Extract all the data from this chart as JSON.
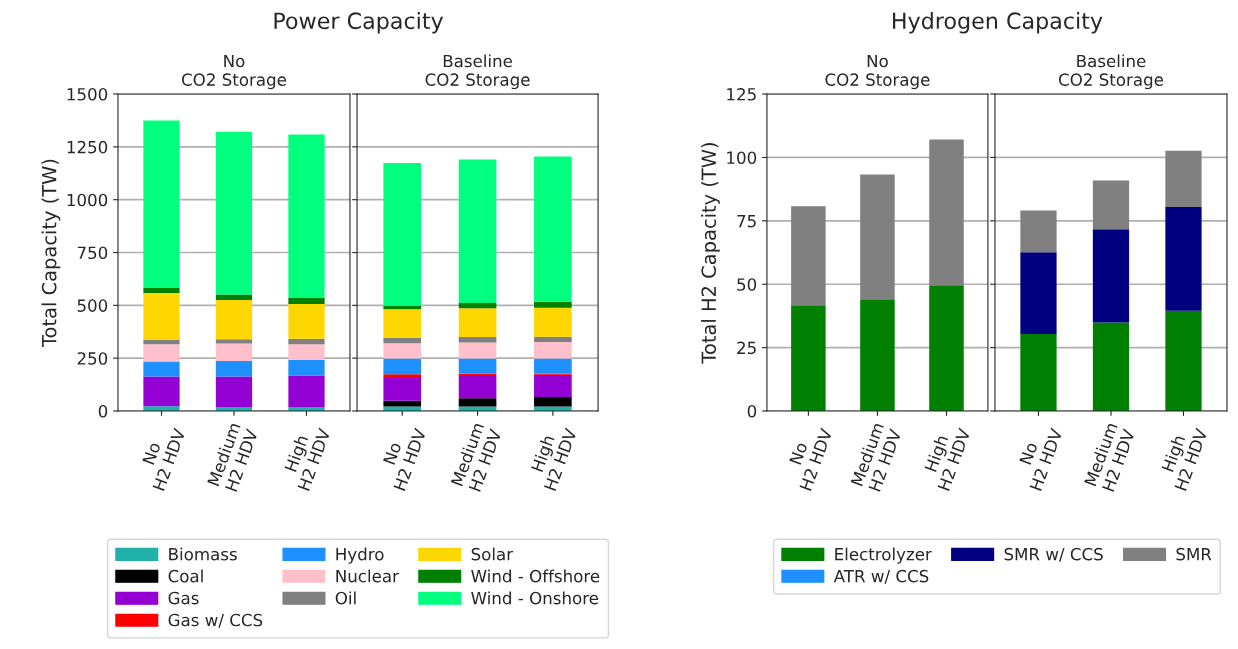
{
  "chart_data": [
    {
      "type": "bar",
      "stacked": true,
      "title": "Power Capacity",
      "subtitle": "No\nCO2 Storage",
      "ylabel": "Total Capacity (TW)",
      "categories": [
        "No\nH2 HDV",
        "Medium\nH2 HDV",
        "High\nH2 HDV"
      ],
      "ylim": [
        0,
        1500
      ],
      "yticks": [
        0,
        250,
        500,
        750,
        1000,
        1250,
        1500
      ],
      "grid": "y",
      "legend": "bottom",
      "series": [
        {
          "name": "Biomass",
          "color": "#20b2aa",
          "values": [
            22,
            19,
            19
          ]
        },
        {
          "name": "Coal",
          "color": "#000000",
          "values": [
            0,
            0,
            0
          ]
        },
        {
          "name": "Gas",
          "color": "#9400d3",
          "values": [
            141,
            144,
            149
          ]
        },
        {
          "name": "Gas w/ CCS",
          "color": "#ff0000",
          "values": [
            0,
            0,
            0
          ]
        },
        {
          "name": "Hydro",
          "color": "#1e90ff",
          "values": [
            71,
            74,
            74
          ]
        },
        {
          "name": "Nuclear",
          "color": "#ffc0cb",
          "values": [
            82,
            83,
            74
          ]
        },
        {
          "name": "Oil",
          "color": "#808080",
          "values": [
            21,
            20,
            26
          ]
        },
        {
          "name": "Solar",
          "color": "#ffd700",
          "values": [
            222,
            185,
            164
          ]
        },
        {
          "name": "Wind - Offshore",
          "color": "#008000",
          "values": [
            25,
            26,
            29
          ]
        },
        {
          "name": "Wind - Onshore",
          "color": "#00ff7f",
          "values": [
            791,
            770,
            774
          ]
        }
      ]
    },
    {
      "type": "bar",
      "stacked": true,
      "subtitle": "Baseline\nCO2 Storage",
      "categories": [
        "No\nH2 HDV",
        "Medium\nH2 HDV",
        "High\nH2 HDV"
      ],
      "ylim": [
        0,
        1500
      ],
      "yticks": [
        0,
        250,
        500,
        750,
        1000,
        1250,
        1500
      ],
      "tick_labels": "x",
      "grid": "y",
      "series": [
        {
          "color": "#20b2aa",
          "values": [
            21,
            21,
            21
          ]
        },
        {
          "color": "#000000",
          "values": [
            28,
            39,
            45
          ]
        },
        {
          "color": "#9400d3",
          "values": [
            112,
            106,
            106
          ]
        },
        {
          "color": "#ff0000",
          "values": [
            13,
            10,
            5
          ]
        },
        {
          "color": "#1e90ff",
          "values": [
            74,
            72,
            71
          ]
        },
        {
          "color": "#ffc0cb",
          "values": [
            73,
            76,
            79
          ]
        },
        {
          "color": "#808080",
          "values": [
            26,
            26,
            24
          ]
        },
        {
          "color": "#ffd700",
          "values": [
            134,
            136,
            138
          ]
        },
        {
          "color": "#008000",
          "values": [
            17,
            25,
            28
          ]
        },
        {
          "color": "#00ff7f",
          "values": [
            676,
            679,
            687
          ]
        }
      ]
    },
    {
      "type": "bar",
      "stacked": true,
      "title": "Hydrogen Capacity",
      "subtitle": "No\nCO2 Storage",
      "ylabel": "Total H2 Capacity (TW)",
      "categories": [
        "No\nH2 HDV",
        "Medium\nH2 HDV",
        "High\nH2 HDV"
      ],
      "ylim": [
        0,
        125
      ],
      "yticks": [
        0,
        25,
        50,
        75,
        100,
        125
      ],
      "grid": "y",
      "legend": "bottom",
      "series": [
        {
          "name": "Electrolyzer",
          "color": "#008000",
          "values": [
            41.7,
            44.1,
            49.6
          ]
        },
        {
          "name": "ATR w/ CCS",
          "color": "#1e90ff",
          "values": [
            0,
            0,
            0
          ]
        },
        {
          "name": "SMR w/ CCS",
          "color": "#000080",
          "values": [
            0,
            0,
            0
          ]
        },
        {
          "name": "SMR",
          "color": "#808080",
          "values": [
            39.0,
            49.2,
            57.5
          ]
        }
      ]
    },
    {
      "type": "bar",
      "stacked": true,
      "subtitle": "Baseline\nCO2 Storage",
      "categories": [
        "No\nH2 HDV",
        "Medium\nH2 HDV",
        "High\nH2 HDV"
      ],
      "ylim": [
        0,
        125
      ],
      "yticks": [
        0,
        25,
        50,
        75,
        100,
        125
      ],
      "tick_labels": "x",
      "grid": "y",
      "series": [
        {
          "color": "#008000",
          "values": [
            30.4,
            34.9,
            39.5
          ]
        },
        {
          "color": "#1e90ff",
          "values": [
            0,
            0,
            0
          ]
        },
        {
          "color": "#000080",
          "values": [
            32.2,
            36.8,
            41.0
          ]
        },
        {
          "color": "#808080",
          "values": [
            16.5,
            19.2,
            22.1
          ]
        }
      ]
    }
  ]
}
